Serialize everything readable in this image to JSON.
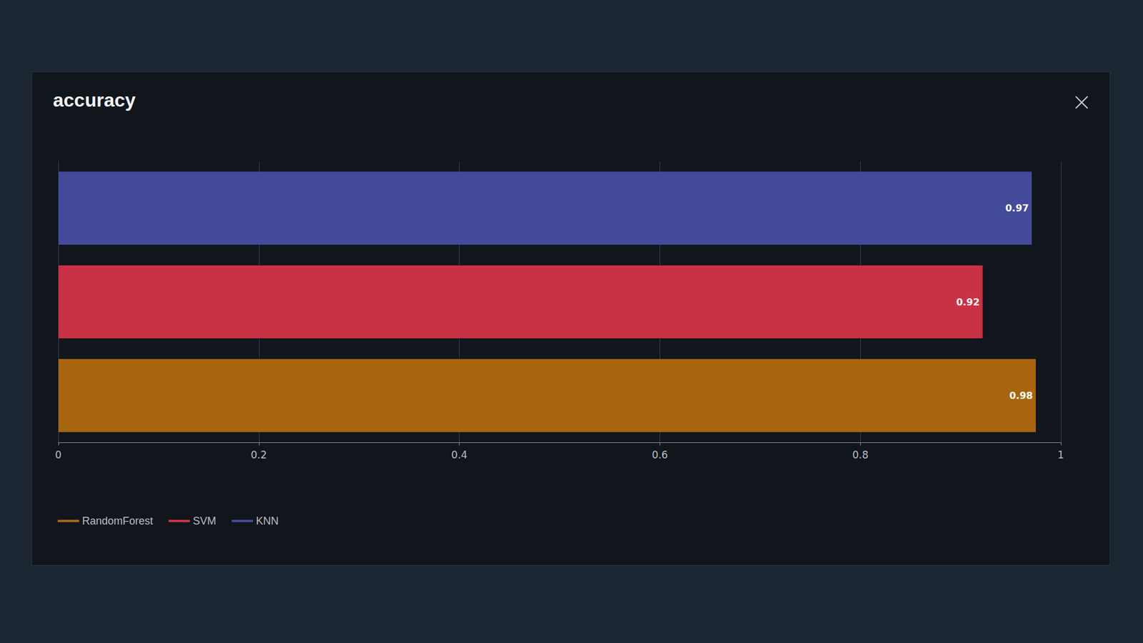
{
  "chart_data": {
    "type": "bar",
    "title": "accuracy",
    "orientation": "horizontal",
    "categories": [
      "RandomForest",
      "SVM",
      "KNN"
    ],
    "values": [
      0.975,
      0.922,
      0.971
    ],
    "value_labels": [
      "0.98",
      "0.92",
      "0.97"
    ],
    "colors": [
      "#a7650f",
      "#c93244",
      "#434a99"
    ],
    "xlim": [
      0,
      1
    ],
    "xticks": [
      0,
      0.2,
      0.4,
      0.6,
      0.8,
      1
    ],
    "grid": true,
    "data_labels": true,
    "tick_labels": "x",
    "legend": "bottom left"
  }
}
